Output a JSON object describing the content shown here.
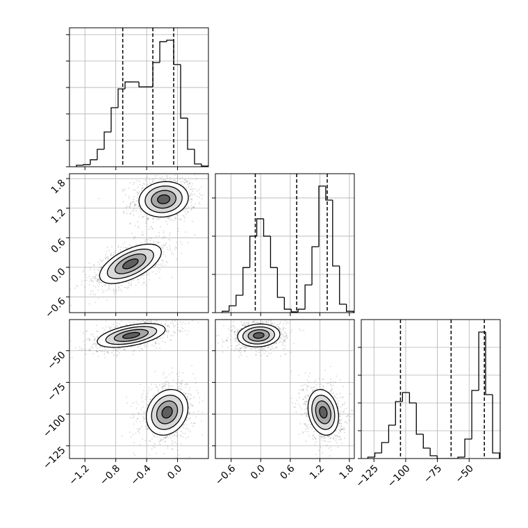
{
  "chart_data": [
    {
      "type": "histogram",
      "color": "#000000",
      "bins": [
        -1.31,
        -1.22,
        -1.13,
        -1.04,
        -0.95,
        -0.86,
        -0.77,
        -0.68,
        -0.59,
        -0.5,
        -0.41,
        -0.32,
        -0.23,
        -0.14,
        -0.05,
        0.04,
        0.13,
        0.22,
        0.31,
        0.4
      ],
      "values": [
        11,
        16,
        53,
        132,
        263,
        447,
        589,
        642,
        642,
        605,
        605,
        789,
        947,
        958,
        774,
        368,
        132,
        21,
        5
      ],
      "quantiles": [
        -0.71,
        -0.32,
        -0.05
      ],
      "xlim": [
        -1.4,
        0.4
      ],
      "xticks": [
        -1.2,
        -0.8,
        -0.4,
        0.0
      ],
      "ylim": [
        0,
        1052
      ],
      "yticks": [
        0,
        200,
        400,
        600,
        800,
        1000
      ]
    },
    {
      "type": "scatter",
      "point_color": "#000000",
      "level_colors": [
        "#ffffff",
        "#d9d9d9",
        "#a6a6a6",
        "#5e5e5e"
      ],
      "levels": [
        2.0,
        1.5,
        1.0,
        0.5
      ],
      "clusters": [
        {
          "center": [
            -0.18,
            1.38
          ],
          "sd": [
            0.16,
            0.18
          ],
          "rho": 0.1,
          "n": 900
        },
        {
          "center": [
            -0.61,
            0.07
          ],
          "sd": [
            0.2,
            0.2
          ],
          "rho": 0.6,
          "n": 900
        }
      ],
      "xlim": [
        -1.4,
        0.4
      ],
      "xticks": [
        -1.2,
        -0.8,
        -0.4,
        0.0
      ],
      "ylim": [
        -0.92,
        1.9
      ],
      "yticks": [
        {
          "value": -0.6,
          "label": "−0.6"
        },
        {
          "value": 0.0,
          "label": "0.0"
        },
        {
          "value": 0.6,
          "label": "0.6"
        },
        {
          "value": 1.2,
          "label": "1.2"
        },
        {
          "value": 1.8,
          "label": "1.8"
        }
      ]
    },
    {
      "type": "histogram",
      "color": "#000000",
      "bins": [
        -0.78,
        -0.64,
        -0.5,
        -0.36,
        -0.22,
        -0.08,
        0.06,
        0.2,
        0.34,
        0.48,
        0.62,
        0.76,
        0.9,
        1.04,
        1.18,
        1.32,
        1.46,
        1.6,
        1.74,
        1.88
      ],
      "values": [
        7,
        36,
        91,
        236,
        400,
        491,
        400,
        236,
        80,
        18,
        4,
        18,
        145,
        345,
        662,
        589,
        244,
        44,
        7
      ],
      "quantiles": [
        -0.11,
        0.73,
        1.35
      ],
      "xlim": [
        -0.92,
        1.9
      ],
      "xticks": [
        -0.6,
        0.0,
        0.6,
        1.2,
        1.8
      ],
      "ylim": [
        0,
        727
      ],
      "yticks": [
        0,
        200,
        400,
        600
      ]
    },
    {
      "type": "scatter",
      "point_color": "#000000",
      "level_colors": [
        "#ffffff",
        "#d9d9d9",
        "#a6a6a6",
        "#5e5e5e"
      ],
      "levels": [
        2.0,
        1.5,
        1.0,
        0.5
      ],
      "clusters": [
        {
          "center": [
            -0.6,
            -38
          ],
          "sd": [
            0.22,
            4.7
          ],
          "rho": 0.5,
          "n": 900
        },
        {
          "center": [
            -0.135,
            -98.6
          ],
          "sd": [
            0.135,
            9
          ],
          "rho": 0.2,
          "n": 900
        }
      ],
      "xlim": [
        -1.4,
        0.4
      ],
      "xticks": [
        {
          "value": -1.2,
          "label": "−1.2"
        },
        {
          "value": -0.8,
          "label": "−0.8"
        },
        {
          "value": -0.4,
          "label": "−0.4"
        },
        {
          "value": 0.0,
          "label": "0.0"
        }
      ],
      "ylim": [
        -135,
        -25.5
      ],
      "yticks": [
        {
          "value": -125,
          "label": "−125"
        },
        {
          "value": -100,
          "label": "−100"
        },
        {
          "value": -75,
          "label": "−75"
        },
        {
          "value": -50,
          "label": "−50"
        }
      ]
    },
    {
      "type": "scatter",
      "point_color": "#000000",
      "level_colors": [
        "#ffffff",
        "#d9d9d9",
        "#a6a6a6",
        "#5e5e5e"
      ],
      "levels": [
        2.0,
        1.5,
        1.0,
        0.5
      ],
      "clusters": [
        {
          "center": [
            -0.04,
            -38
          ],
          "sd": [
            0.215,
            4.5
          ],
          "rho": 0.1,
          "n": 900
        },
        {
          "center": [
            1.27,
            -98.6
          ],
          "sd": [
            0.155,
            9
          ],
          "rho": -0.2,
          "n": 900
        }
      ],
      "xlim": [
        -0.92,
        1.9
      ],
      "xticks": [
        {
          "value": -0.6,
          "label": "−0.6"
        },
        {
          "value": 0.0,
          "label": "0.0"
        },
        {
          "value": 0.6,
          "label": "0.6"
        },
        {
          "value": 1.2,
          "label": "1.2"
        },
        {
          "value": 1.8,
          "label": "1.8"
        }
      ],
      "ylim": [
        -135,
        -25.5
      ],
      "yticks": [
        -125,
        -100,
        -75,
        -50
      ]
    },
    {
      "type": "histogram",
      "color": "#000000",
      "bins": [
        -129.8,
        -124.3,
        -118.9,
        -113.4,
        -108.0,
        -102.5,
        -97.0,
        -91.6,
        -86.1,
        -80.7,
        -75.2,
        -69.7,
        -64.3,
        -58.8,
        -53.4,
        -47.9,
        -42.4,
        -37.0,
        -31.5,
        -26.1
      ],
      "values": [
        10,
        40,
        115,
        240,
        410,
        475,
        400,
        175,
        75,
        20,
        0,
        0,
        0,
        10,
        140,
        490,
        910,
        460,
        40
      ],
      "quantiles": [
        -104.1,
        -64.2,
        -38.0
      ],
      "xlim": [
        -135,
        -25.5
      ],
      "xticks": [
        {
          "value": -125,
          "label": "−125"
        },
        {
          "value": -100,
          "label": "−100"
        },
        {
          "value": -75,
          "label": "−75"
        },
        {
          "value": -50,
          "label": "−50"
        }
      ],
      "ylim": [
        0,
        1000
      ],
      "yticks": [
        0,
        200,
        400,
        600,
        800
      ]
    }
  ]
}
